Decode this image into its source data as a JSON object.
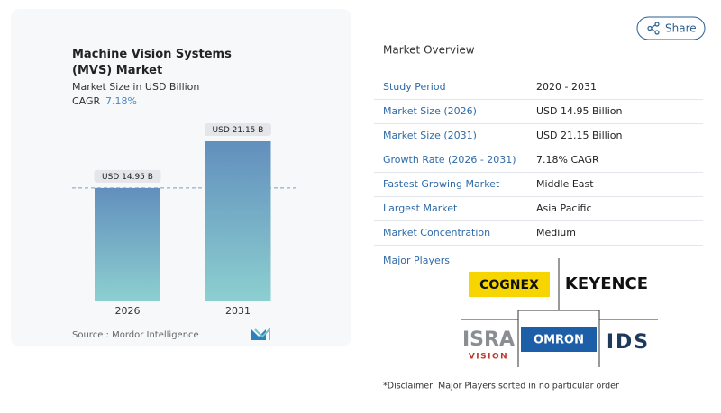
{
  "share_button": "Share",
  "chart_data": {
    "type": "bar",
    "title": "Machine Vision Systems (MVS) Market",
    "subtitle": "Market Size in USD Billion",
    "cagr_label": "CAGR",
    "cagr_value": "7.18%",
    "categories": [
      "2026",
      "2031"
    ],
    "values": [
      14.95,
      21.15
    ],
    "value_labels": [
      "USD 14.95 B",
      "USD 21.15 B"
    ],
    "source": "Source :  Mordor Intelligence"
  },
  "overview": {
    "title": "Market Overview",
    "rows": [
      [
        "Study Period",
        "2020 - 2031"
      ],
      [
        "Market Size (2026)",
        "USD 14.95 Billion"
      ],
      [
        "Market Size (2031)",
        "USD 21.15 Billion"
      ],
      [
        "Growth Rate (2026 - 2031)",
        "7.18% CAGR"
      ],
      [
        "Fastest Growing Market",
        "Middle East"
      ],
      [
        "Largest Market",
        "Asia Pacific"
      ],
      [
        "Market Concentration",
        "Medium"
      ]
    ]
  },
  "major_players": {
    "title": "Major Players",
    "logos": [
      "COGNEX",
      "KEYENCE",
      "ISRA",
      "VISION",
      "OMRON",
      "IDS"
    ]
  },
  "disclaimer": "*Disclaimer: Major Players sorted in no particular order"
}
